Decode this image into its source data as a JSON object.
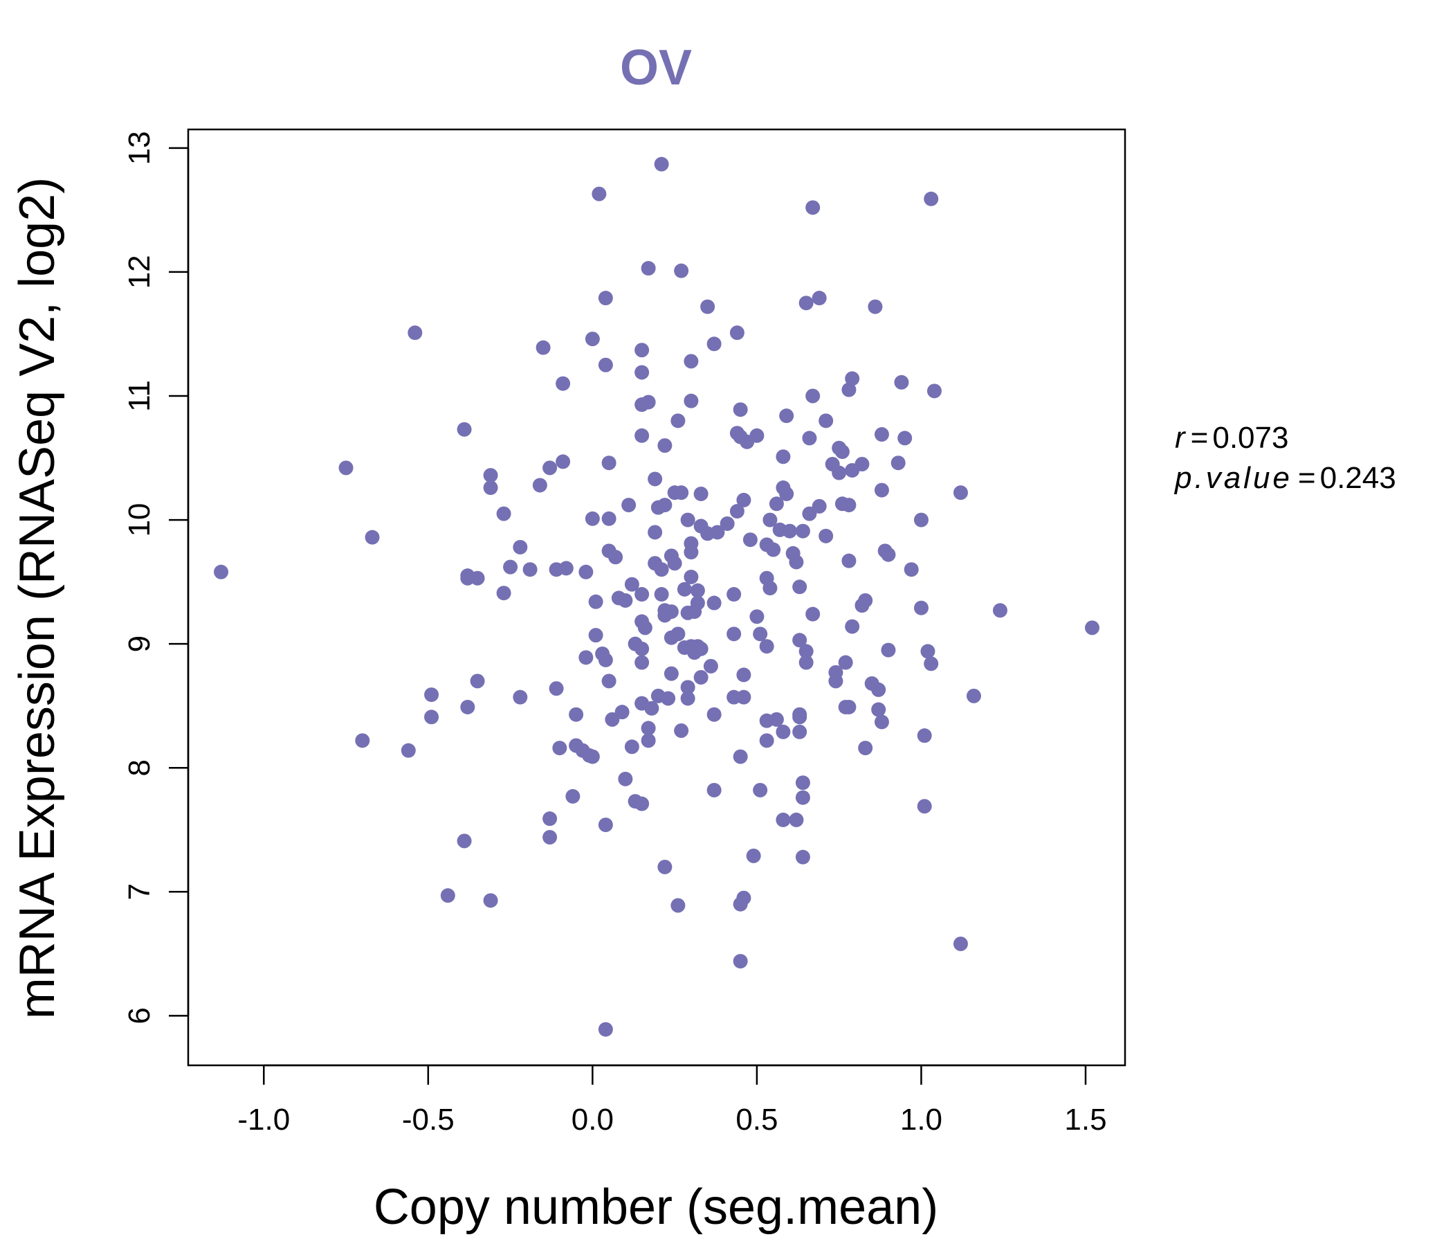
{
  "chart_data": {
    "type": "scatter",
    "title": "OV",
    "xlabel": "Copy number (seg.mean)",
    "ylabel": "mRNA Expression (RNASeq V2, log2)",
    "xlim": [
      -1.23,
      1.62
    ],
    "ylim": [
      5.6,
      13.15
    ],
    "x_ticks": [
      -1.0,
      -0.5,
      0.0,
      0.5,
      1.0,
      1.5
    ],
    "x_tick_labels": [
      "-1.0",
      "-0.5",
      "0.0",
      "0.5",
      "1.0",
      "1.5"
    ],
    "y_ticks": [
      6,
      7,
      8,
      9,
      10,
      11,
      12,
      13
    ],
    "y_tick_labels": [
      "6",
      "7",
      "8",
      "9",
      "10",
      "11",
      "12",
      "13"
    ],
    "grid": false,
    "point_color": "#7570b3",
    "title_color": "#7570b3",
    "stats": {
      "r_label": "r",
      "r_value": "0.073",
      "p_label": "p.value",
      "p_value": "0.243",
      "eq": "="
    },
    "points": [
      [
        0.21,
        12.87
      ],
      [
        0.02,
        12.63
      ],
      [
        0.67,
        12.52
      ],
      [
        1.03,
        12.59
      ],
      [
        0.17,
        12.03
      ],
      [
        0.27,
        12.01
      ],
      [
        0.04,
        11.79
      ],
      [
        0.65,
        11.75
      ],
      [
        0.69,
        11.79
      ],
      [
        0.35,
        11.72
      ],
      [
        0.86,
        11.72
      ],
      [
        -0.54,
        11.51
      ],
      [
        0.44,
        11.51
      ],
      [
        0.0,
        11.46
      ],
      [
        -0.15,
        11.39
      ],
      [
        0.15,
        11.37
      ],
      [
        0.37,
        11.42
      ],
      [
        0.04,
        11.25
      ],
      [
        0.3,
        11.28
      ],
      [
        0.15,
        11.19
      ],
      [
        -0.09,
        11.1
      ],
      [
        0.79,
        11.14
      ],
      [
        0.94,
        11.11
      ],
      [
        0.67,
        11.0
      ],
      [
        0.78,
        11.05
      ],
      [
        1.04,
        11.04
      ],
      [
        0.15,
        10.93
      ],
      [
        0.17,
        10.95
      ],
      [
        0.3,
        10.96
      ],
      [
        0.45,
        10.89
      ],
      [
        0.59,
        10.84
      ],
      [
        0.71,
        10.8
      ],
      [
        0.26,
        10.8
      ],
      [
        -0.39,
        10.73
      ],
      [
        0.44,
        10.7
      ],
      [
        0.15,
        10.68
      ],
      [
        0.5,
        10.68
      ],
      [
        0.45,
        10.67
      ],
      [
        0.66,
        10.66
      ],
      [
        0.88,
        10.69
      ],
      [
        0.95,
        10.66
      ],
      [
        0.22,
        10.6
      ],
      [
        0.47,
        10.63
      ],
      [
        0.75,
        10.58
      ],
      [
        0.76,
        10.55
      ],
      [
        0.58,
        10.51
      ],
      [
        -0.75,
        10.42
      ],
      [
        -0.13,
        10.42
      ],
      [
        -0.09,
        10.47
      ],
      [
        0.05,
        10.46
      ],
      [
        0.73,
        10.45
      ],
      [
        0.82,
        10.45
      ],
      [
        0.93,
        10.46
      ],
      [
        0.79,
        10.4
      ],
      [
        0.75,
        10.38
      ],
      [
        -0.31,
        10.36
      ],
      [
        0.19,
        10.33
      ],
      [
        -0.16,
        10.28
      ],
      [
        -0.31,
        10.26
      ],
      [
        0.25,
        10.22
      ],
      [
        0.27,
        10.22
      ],
      [
        0.33,
        10.21
      ],
      [
        0.58,
        10.26
      ],
      [
        0.59,
        10.21
      ],
      [
        0.88,
        10.24
      ],
      [
        1.12,
        10.22
      ],
      [
        0.46,
        10.16
      ],
      [
        0.56,
        10.13
      ],
      [
        0.76,
        10.13
      ],
      [
        0.78,
        10.12
      ],
      [
        0.69,
        10.11
      ],
      [
        0.2,
        10.1
      ],
      [
        0.22,
        10.12
      ],
      [
        0.11,
        10.12
      ],
      [
        0.66,
        10.05
      ],
      [
        0.44,
        10.07
      ],
      [
        -0.27,
        10.05
      ],
      [
        0.29,
        10.0
      ],
      [
        -0.0,
        10.01
      ],
      [
        0.05,
        10.01
      ],
      [
        0.54,
        10.0
      ],
      [
        1.0,
        10.0
      ],
      [
        0.33,
        9.95
      ],
      [
        0.41,
        9.97
      ],
      [
        0.57,
        9.92
      ],
      [
        0.6,
        9.91
      ],
      [
        0.64,
        9.91
      ],
      [
        0.71,
        9.87
      ],
      [
        -0.67,
        9.86
      ],
      [
        0.19,
        9.9
      ],
      [
        0.35,
        9.89
      ],
      [
        0.38,
        9.9
      ],
      [
        0.48,
        9.84
      ],
      [
        0.53,
        9.8
      ],
      [
        0.3,
        9.81
      ],
      [
        -0.22,
        9.78
      ],
      [
        0.55,
        9.76
      ],
      [
        0.05,
        9.75
      ],
      [
        0.3,
        9.74
      ],
      [
        0.89,
        9.75
      ],
      [
        0.9,
        9.72
      ],
      [
        0.07,
        9.7
      ],
      [
        0.24,
        9.71
      ],
      [
        0.61,
        9.73
      ],
      [
        0.62,
        9.66
      ],
      [
        0.78,
        9.67
      ],
      [
        0.19,
        9.65
      ],
      [
        0.25,
        9.65
      ],
      [
        -0.25,
        9.62
      ],
      [
        -0.19,
        9.6
      ],
      [
        -0.11,
        9.6
      ],
      [
        -0.08,
        9.61
      ],
      [
        0.21,
        9.6
      ],
      [
        0.97,
        9.6
      ],
      [
        -1.13,
        9.58
      ],
      [
        -0.02,
        9.58
      ],
      [
        -0.38,
        9.55
      ],
      [
        -0.38,
        9.53
      ],
      [
        -0.35,
        9.53
      ],
      [
        0.3,
        9.54
      ],
      [
        0.53,
        9.53
      ],
      [
        0.12,
        9.48
      ],
      [
        0.54,
        9.45
      ],
      [
        0.63,
        9.46
      ],
      [
        0.28,
        9.44
      ],
      [
        0.32,
        9.43
      ],
      [
        0.15,
        9.4
      ],
      [
        0.21,
        9.4
      ],
      [
        0.43,
        9.4
      ],
      [
        -0.27,
        9.41
      ],
      [
        0.08,
        9.37
      ],
      [
        0.1,
        9.35
      ],
      [
        0.01,
        9.34
      ],
      [
        0.32,
        9.33
      ],
      [
        0.37,
        9.33
      ],
      [
        0.82,
        9.31
      ],
      [
        0.83,
        9.35
      ],
      [
        0.22,
        9.27
      ],
      [
        0.22,
        9.23
      ],
      [
        0.29,
        9.25
      ],
      [
        0.31,
        9.26
      ],
      [
        0.24,
        9.26
      ],
      [
        1.24,
        9.27
      ],
      [
        1.0,
        9.29
      ],
      [
        0.5,
        9.22
      ],
      [
        0.67,
        9.24
      ],
      [
        0.15,
        9.18
      ],
      [
        0.16,
        9.13
      ],
      [
        0.79,
        9.14
      ],
      [
        1.52,
        9.13
      ],
      [
        0.01,
        9.07
      ],
      [
        0.26,
        9.08
      ],
      [
        0.43,
        9.08
      ],
      [
        0.51,
        9.08
      ],
      [
        0.24,
        9.05
      ],
      [
        0.63,
        9.03
      ],
      [
        0.13,
        9.0
      ],
      [
        0.53,
        8.98
      ],
      [
        0.28,
        8.97
      ],
      [
        0.3,
        8.98
      ],
      [
        0.32,
        8.98
      ],
      [
        0.31,
        8.93
      ],
      [
        0.15,
        8.96
      ],
      [
        0.33,
        8.96
      ],
      [
        0.65,
        8.94
      ],
      [
        0.9,
        8.95
      ],
      [
        1.02,
        8.94
      ],
      [
        0.03,
        8.92
      ],
      [
        0.04,
        8.87
      ],
      [
        -0.02,
        8.89
      ],
      [
        0.15,
        8.85
      ],
      [
        0.65,
        8.85
      ],
      [
        0.36,
        8.82
      ],
      [
        0.77,
        8.85
      ],
      [
        1.03,
        8.84
      ],
      [
        0.24,
        8.76
      ],
      [
        0.46,
        8.75
      ],
      [
        0.74,
        8.77
      ],
      [
        0.33,
        8.73
      ],
      [
        0.05,
        8.7
      ],
      [
        0.74,
        8.7
      ],
      [
        -0.35,
        8.7
      ],
      [
        0.85,
        8.68
      ],
      [
        0.87,
        8.63
      ],
      [
        -0.11,
        8.64
      ],
      [
        0.29,
        8.65
      ],
      [
        -0.49,
        8.59
      ],
      [
        -0.22,
        8.57
      ],
      [
        0.2,
        8.58
      ],
      [
        0.23,
        8.56
      ],
      [
        0.43,
        8.57
      ],
      [
        0.46,
        8.57
      ],
      [
        0.29,
        8.56
      ],
      [
        1.16,
        8.58
      ],
      [
        0.15,
        8.52
      ],
      [
        0.18,
        8.48
      ],
      [
        -0.38,
        8.49
      ],
      [
        0.77,
        8.49
      ],
      [
        0.78,
        8.49
      ],
      [
        0.87,
        8.47
      ],
      [
        0.09,
        8.45
      ],
      [
        0.37,
        8.43
      ],
      [
        0.63,
        8.43
      ],
      [
        0.63,
        8.41
      ],
      [
        -0.05,
        8.43
      ],
      [
        -0.49,
        8.41
      ],
      [
        0.06,
        8.39
      ],
      [
        0.53,
        8.38
      ],
      [
        0.56,
        8.39
      ],
      [
        0.88,
        8.37
      ],
      [
        0.17,
        8.32
      ],
      [
        0.27,
        8.3
      ],
      [
        0.58,
        8.29
      ],
      [
        0.63,
        8.29
      ],
      [
        1.01,
        8.26
      ],
      [
        -0.7,
        8.22
      ],
      [
        0.17,
        8.22
      ],
      [
        0.53,
        8.22
      ],
      [
        -0.05,
        8.18
      ],
      [
        -0.1,
        8.16
      ],
      [
        -0.03,
        8.14
      ],
      [
        0.12,
        8.17
      ],
      [
        0.83,
        8.16
      ],
      [
        -0.56,
        8.14
      ],
      [
        -0.01,
        8.1
      ],
      [
        0.0,
        8.09
      ],
      [
        0.45,
        8.09
      ],
      [
        0.1,
        7.91
      ],
      [
        0.64,
        7.88
      ],
      [
        0.37,
        7.82
      ],
      [
        0.51,
        7.82
      ],
      [
        -0.06,
        7.77
      ],
      [
        0.64,
        7.76
      ],
      [
        0.13,
        7.73
      ],
      [
        0.15,
        7.71
      ],
      [
        1.01,
        7.69
      ],
      [
        -0.13,
        7.59
      ],
      [
        0.58,
        7.58
      ],
      [
        0.62,
        7.58
      ],
      [
        0.04,
        7.54
      ],
      [
        -0.13,
        7.44
      ],
      [
        -0.39,
        7.41
      ],
      [
        0.49,
        7.29
      ],
      [
        0.64,
        7.28
      ],
      [
        0.22,
        7.2
      ],
      [
        -0.44,
        6.97
      ],
      [
        -0.31,
        6.93
      ],
      [
        0.46,
        6.95
      ],
      [
        0.45,
        6.9
      ],
      [
        0.26,
        6.89
      ],
      [
        1.12,
        6.58
      ],
      [
        0.45,
        6.44
      ],
      [
        0.04,
        5.89
      ]
    ]
  }
}
